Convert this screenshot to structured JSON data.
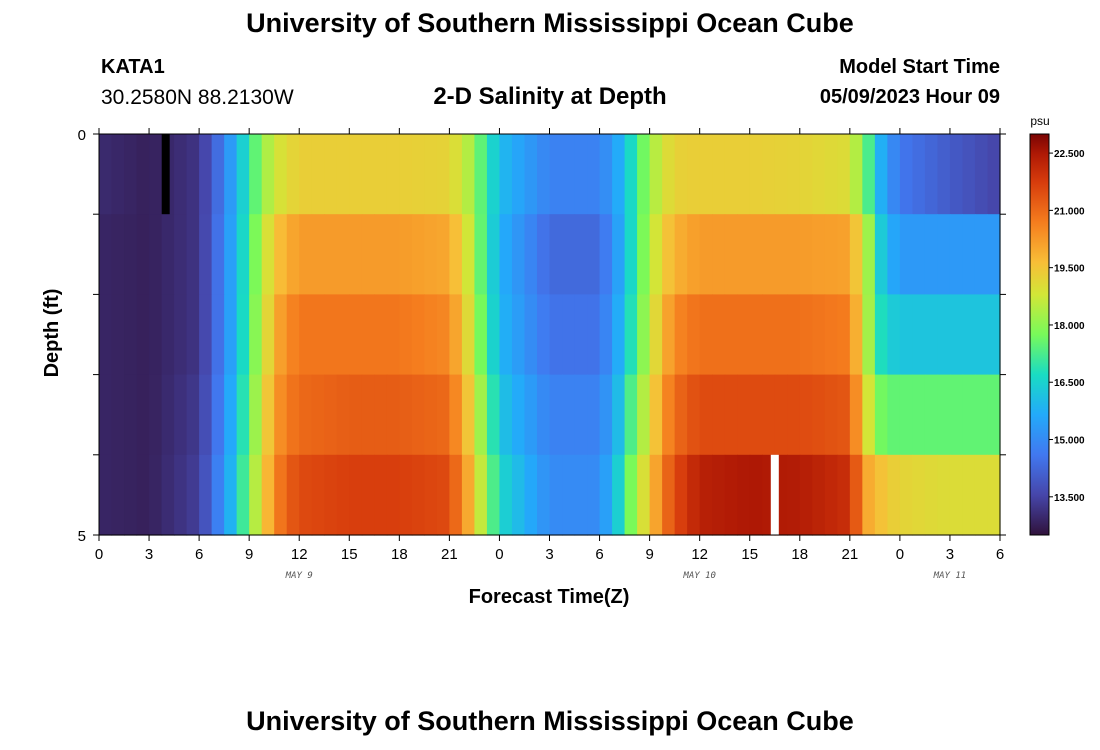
{
  "header": {
    "title": "University of Southern Mississippi Ocean Cube",
    "station": "KATA1",
    "coords": "30.2580N  88.2130W",
    "plot_title": "2-D Salinity at Depth",
    "model_start_label": "Model Start Time",
    "model_start_value": "05/09/2023 Hour 09"
  },
  "footer": {
    "title": "University of Southern Mississippi Ocean Cube"
  },
  "chart_data": {
    "type": "heatmap",
    "title": "2-D Salinity at Depth",
    "xlabel": "Forecast Time(Z)",
    "ylabel": "Depth (ft)",
    "x_tick_labels": [
      "0",
      "3",
      "6",
      "9",
      "12",
      "15",
      "18",
      "21",
      "0",
      "3",
      "6",
      "9",
      "12",
      "15",
      "18",
      "21",
      "0",
      "3",
      "6"
    ],
    "date_labels": [
      {
        "text": "MAY 9",
        "hour": 12
      },
      {
        "text": "MAY 10",
        "hour": 36
      },
      {
        "text": "MAY 11",
        "hour": 51
      }
    ],
    "y_tick_labels": [
      "0",
      "5"
    ],
    "ylim": [
      0,
      5
    ],
    "xlim_hours": [
      0,
      54
    ],
    "colorbar": {
      "unit": "psu",
      "range": [
        12.5,
        23.0
      ],
      "tick_labels": [
        "22.500",
        "21.000",
        "19.500",
        "18.000",
        "16.500",
        "15.000",
        "13.500"
      ],
      "tick_values": [
        22.5,
        21.0,
        19.5,
        18.0,
        16.5,
        15.0,
        13.5
      ]
    },
    "depth_layers_ft": [
      0,
      1,
      2,
      3,
      4,
      5
    ],
    "time_hours": [
      0,
      3,
      6,
      7,
      8,
      9,
      10,
      11,
      12,
      15,
      18,
      21,
      22,
      23,
      24,
      27,
      30,
      31,
      32,
      33,
      34,
      35,
      36,
      39,
      42,
      45,
      46,
      47,
      48,
      51,
      54
    ],
    "salinity_psu": [
      [
        13.0,
        12.8,
        13.2,
        14.2,
        15.5,
        17.0,
        18.3,
        19.0,
        19.3,
        19.3,
        19.3,
        19.2,
        18.6,
        17.3,
        16.0,
        14.8,
        14.8,
        15.5,
        16.8,
        18.2,
        19.0,
        19.3,
        19.3,
        19.3,
        19.2,
        19.0,
        17.5,
        15.5,
        14.6,
        14.0,
        13.5
      ],
      [
        12.9,
        12.8,
        13.2,
        14.3,
        15.6,
        17.2,
        18.8,
        19.8,
        20.2,
        20.2,
        20.2,
        20.0,
        19.0,
        17.3,
        15.8,
        14.3,
        14.3,
        15.3,
        16.8,
        18.4,
        19.5,
        20.0,
        20.2,
        20.2,
        20.2,
        20.1,
        18.5,
        16.0,
        15.3,
        15.3,
        15.3
      ],
      [
        12.9,
        12.8,
        13.2,
        14.3,
        15.6,
        17.3,
        19.0,
        20.3,
        20.8,
        20.8,
        20.8,
        20.5,
        19.3,
        17.5,
        15.9,
        14.5,
        14.5,
        15.5,
        17.0,
        18.6,
        20.0,
        20.7,
        20.9,
        20.9,
        20.9,
        20.7,
        18.5,
        16.5,
        16.2,
        16.2,
        16.2
      ],
      [
        12.9,
        12.8,
        13.3,
        14.4,
        15.8,
        17.5,
        19.3,
        20.6,
        21.0,
        21.2,
        21.2,
        21.0,
        19.7,
        18.0,
        16.2,
        14.8,
        14.8,
        15.8,
        17.5,
        19.0,
        20.5,
        21.2,
        21.5,
        21.5,
        21.5,
        21.3,
        19.0,
        17.5,
        17.5,
        17.5,
        17.5
      ],
      [
        12.9,
        12.8,
        13.4,
        14.6,
        16.0,
        17.8,
        19.6,
        21.0,
        21.5,
        21.7,
        21.7,
        21.5,
        20.2,
        18.4,
        16.6,
        15.0,
        15.0,
        16.2,
        18.0,
        19.5,
        21.0,
        21.8,
        22.3,
        22.5,
        22.4,
        22.0,
        20.0,
        19.5,
        19.2,
        19.0,
        19.0
      ],
      [
        12.9,
        12.8,
        13.5,
        15.0,
        16.8,
        18.8,
        20.3,
        21.5,
        22.0,
        22.3,
        22.3,
        22.0,
        20.8,
        19.0,
        16.8,
        15.2,
        15.2,
        16.8,
        19.0,
        20.3,
        21.8,
        22.7,
        23.0,
        23.0,
        23.0,
        22.4,
        21.0,
        20.0,
        19.7,
        19.7,
        20.5
      ]
    ],
    "markers": [
      {
        "color": "#000000",
        "hour": 4.0,
        "depth_from": 0,
        "depth_to": 1
      },
      {
        "color": "#ffffff",
        "hour": 40.5,
        "depth_from": 4,
        "depth_to": 5
      }
    ]
  }
}
